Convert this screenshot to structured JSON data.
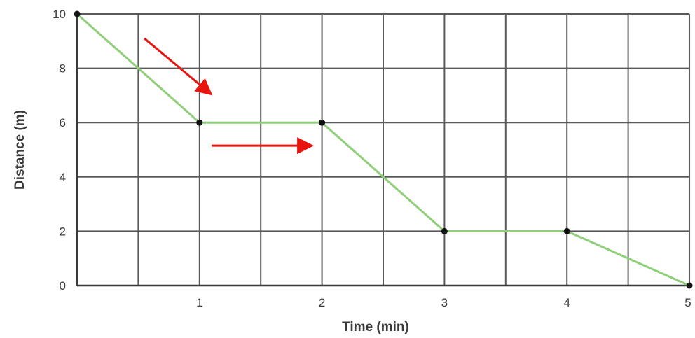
{
  "chart_data": {
    "type": "line",
    "title": "",
    "xlabel": "Time (min)",
    "ylabel": "Distance (m)",
    "xlim": [
      0,
      5
    ],
    "ylim": [
      0,
      10
    ],
    "x_ticks": [
      1,
      2,
      3,
      4,
      5
    ],
    "x_tick_labels": [
      "1",
      "2",
      "3",
      "4",
      "5"
    ],
    "y_ticks": [
      0,
      2,
      4,
      6,
      8,
      10
    ],
    "y_tick_labels": [
      "0",
      "2",
      "4",
      "6",
      "8",
      "10"
    ],
    "grid": true,
    "grid_x_step": 0.5,
    "grid_y_step": 2,
    "series": [
      {
        "x": [
          0,
          1,
          2,
          3,
          4,
          5
        ],
        "y": [
          10,
          6,
          6,
          2,
          2,
          0
        ],
        "color": "#8fcf7a",
        "marker_color": "#111111"
      }
    ],
    "annotations": [
      {
        "type": "arrow",
        "from": [
          0.55,
          9.1
        ],
        "to": [
          1.08,
          7.1
        ],
        "color": "#e8140f"
      },
      {
        "type": "arrow",
        "from": [
          1.1,
          5.15
        ],
        "to": [
          1.9,
          5.15
        ],
        "color": "#e8140f"
      }
    ]
  }
}
